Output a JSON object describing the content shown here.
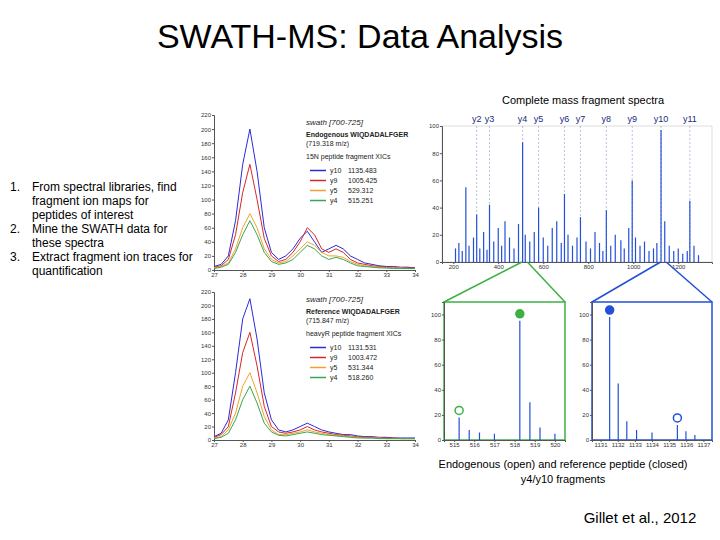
{
  "slide": {
    "title": "SWATH-MS: Data Analysis",
    "steps": [
      {
        "number": "1.",
        "text": "From spectral libraries, find fragment ion maps for peptides of interest"
      },
      {
        "number": "2.",
        "text": "Mine the SWATH data for these spectra"
      },
      {
        "number": "3.",
        "text": "Extract fragment ion traces for quantification"
      }
    ],
    "caption": [
      "Endogenous (open) and reference peptide (closed)",
      "y4/y10 fragments"
    ],
    "citation": "Gillet et al., 2012"
  },
  "chart_data": [
    {
      "type": "line",
      "title": "swath [700-725]",
      "subtitle": "Endogenous WIQDADALFGER",
      "annotations": [
        "(719.318 m/z)",
        "15N peptide fragment XICs"
      ],
      "x": [
        27,
        27.25,
        27.5,
        27.75,
        28,
        28.25,
        28.5,
        28.75,
        29,
        29.25,
        29.5,
        29.75,
        30,
        30.25,
        30.5,
        30.75,
        31,
        31.25,
        31.5,
        31.75,
        32,
        32.25,
        32.5,
        32.75,
        33,
        33.25,
        33.5,
        33.75,
        34
      ],
      "xlim": [
        27,
        34
      ],
      "xticks": [
        27,
        28,
        29,
        30,
        31,
        32,
        33,
        34
      ],
      "ylim": [
        0,
        220
      ],
      "yticks": [
        0,
        20,
        40,
        60,
        80,
        100,
        120,
        140,
        160,
        180,
        200,
        220
      ],
      "series": [
        {
          "name": "y10",
          "mz": "1135.483",
          "color": "#2b2bd9",
          "values": [
            5,
            8,
            20,
            70,
            150,
            200,
            140,
            60,
            25,
            15,
            20,
            30,
            45,
            55,
            40,
            25,
            30,
            35,
            30,
            20,
            15,
            10,
            8,
            6,
            5,
            5,
            4,
            4,
            3
          ]
        },
        {
          "name": "y9",
          "mz": "1005.425",
          "color": "#d62828",
          "values": [
            4,
            6,
            15,
            50,
            110,
            150,
            100,
            45,
            20,
            12,
            15,
            25,
            40,
            60,
            50,
            30,
            25,
            30,
            25,
            15,
            10,
            8,
            6,
            5,
            4,
            4,
            3,
            3,
            3
          ]
        },
        {
          "name": "y5",
          "mz": "529.312",
          "color": "#f2a12c",
          "values": [
            3,
            5,
            10,
            30,
            60,
            80,
            60,
            30,
            15,
            10,
            12,
            20,
            30,
            40,
            35,
            25,
            20,
            20,
            18,
            12,
            8,
            6,
            5,
            4,
            3,
            3,
            3,
            2,
            2
          ]
        },
        {
          "name": "y4",
          "mz": "515.251",
          "color": "#33a852",
          "values": [
            2,
            4,
            8,
            25,
            50,
            70,
            50,
            25,
            12,
            8,
            10,
            15,
            25,
            35,
            30,
            20,
            15,
            18,
            15,
            10,
            6,
            5,
            4,
            3,
            3,
            2,
            2,
            2,
            2
          ]
        }
      ]
    },
    {
      "type": "line",
      "title": "swath [700-725]",
      "subtitle": "Reference WIQDADALFGER",
      "annotations": [
        "(715.847 m/z)",
        "heavyR peptide fragment XICs"
      ],
      "x": [
        27,
        27.25,
        27.5,
        27.75,
        28,
        28.25,
        28.5,
        28.75,
        29,
        29.25,
        29.5,
        29.75,
        30,
        30.25,
        30.5,
        30.75,
        31,
        31.25,
        31.5,
        31.75,
        32,
        32.25,
        32.5,
        32.75,
        33,
        33.25,
        33.5,
        33.75,
        34
      ],
      "xlim": [
        27,
        34
      ],
      "xticks": [
        27,
        28,
        29,
        30,
        31,
        32,
        33,
        34
      ],
      "ylim": [
        0,
        220
      ],
      "yticks": [
        0,
        20,
        40,
        60,
        80,
        100,
        120,
        140,
        160,
        180,
        200,
        220
      ],
      "series": [
        {
          "name": "y10",
          "mz": "1131.531",
          "color": "#2b2bd9",
          "values": [
            5,
            10,
            30,
            100,
            180,
            210,
            150,
            70,
            30,
            15,
            12,
            15,
            20,
            25,
            20,
            15,
            12,
            10,
            8,
            8,
            6,
            5,
            5,
            4,
            4,
            3,
            3,
            3,
            3
          ]
        },
        {
          "name": "y9",
          "mz": "1003.472",
          "color": "#d62828",
          "values": [
            4,
            8,
            20,
            70,
            130,
            160,
            110,
            50,
            20,
            12,
            10,
            12,
            15,
            20,
            15,
            12,
            10,
            8,
            7,
            6,
            5,
            4,
            4,
            3,
            3,
            3,
            2,
            2,
            2
          ]
        },
        {
          "name": "y5",
          "mz": "531.344",
          "color": "#f2a12c",
          "values": [
            3,
            5,
            15,
            40,
            80,
            100,
            70,
            35,
            15,
            8,
            8,
            10,
            12,
            15,
            12,
            10,
            8,
            7,
            6,
            5,
            4,
            3,
            3,
            3,
            2,
            2,
            2,
            2,
            2
          ]
        },
        {
          "name": "y4",
          "mz": "518.260",
          "color": "#33a852",
          "values": [
            2,
            4,
            10,
            30,
            60,
            80,
            55,
            25,
            12,
            7,
            6,
            8,
            10,
            12,
            10,
            8,
            7,
            6,
            5,
            4,
            3,
            3,
            3,
            2,
            2,
            2,
            2,
            2,
            2
          ]
        }
      ]
    },
    {
      "type": "stem",
      "title": "Complete mass fragment spectra",
      "color": "#2350d8",
      "x": [
        210,
        225,
        240,
        256,
        270,
        290,
        304.16,
        318,
        335,
        350,
        361.18,
        380,
        400,
        415,
        430,
        450,
        470,
        490,
        508.25,
        520,
        540,
        560,
        579.28,
        600,
        620,
        640,
        660,
        680,
        694.31,
        710,
        730,
        750,
        765.35,
        790,
        810,
        830,
        850,
        865,
        880.38,
        900,
        920,
        945,
        960,
        980,
        995.42,
        1010,
        1030,
        1050,
        1070,
        1090,
        1105,
        1123.47,
        1140,
        1160,
        1180,
        1200,
        1220,
        1240,
        1251.5,
        1270,
        1290
      ],
      "values": [
        10,
        14,
        8,
        55,
        12,
        18,
        35,
        10,
        22,
        9,
        42,
        15,
        25,
        12,
        30,
        18,
        10,
        28,
        88,
        20,
        15,
        22,
        40,
        18,
        12,
        25,
        30,
        14,
        50,
        20,
        12,
        18,
        33,
        15,
        10,
        22,
        14,
        8,
        38,
        12,
        20,
        16,
        10,
        25,
        60,
        18,
        12,
        15,
        8,
        10,
        14,
        97,
        30,
        12,
        8,
        10,
        6,
        8,
        45,
        12,
        5
      ],
      "xlim": [
        150,
        1350
      ],
      "xticks": [
        200,
        400,
        600,
        800,
        1000,
        1200
      ],
      "ylim": [
        0,
        100
      ],
      "yticks": [
        0,
        20,
        40,
        60,
        80,
        100
      ],
      "annotations": [
        {
          "text": "y2",
          "x": 304.16
        },
        {
          "text": "y3",
          "x": 361.18
        },
        {
          "text": "y4",
          "x": 508.25
        },
        {
          "text": "y5",
          "x": 579.28
        },
        {
          "text": "y6",
          "x": 694.31
        },
        {
          "text": "y7",
          "x": 765.35
        },
        {
          "text": "y8",
          "x": 880.38
        },
        {
          "text": "y9",
          "x": 995.42
        },
        {
          "text": "y10",
          "x": 1123.47
        },
        {
          "text": "y11",
          "x": 1251.5
        }
      ]
    },
    {
      "type": "stem",
      "color": "#3cb043",
      "xlim": [
        514.5,
        520.5
      ],
      "xticks": [
        515,
        516,
        517,
        518,
        519,
        520
      ],
      "ylim": [
        0,
        110
      ],
      "yticks": [
        0,
        20,
        40,
        60,
        80,
        100
      ],
      "series": [
        {
          "x": [
            515.25,
            515.75,
            516.26,
            517.0,
            518.26,
            518.76,
            519.26,
            520.0
          ],
          "values": [
            18,
            8,
            6,
            5,
            95,
            30,
            10,
            5
          ],
          "color": "#2350d8"
        },
        {
          "x": [
            515.25
          ],
          "values": [
            18
          ],
          "marker": "open",
          "color": "#3cb043"
        },
        {
          "x": [
            518.26
          ],
          "values": [
            95
          ],
          "marker": "filled",
          "color": "#3cb043"
        }
      ]
    },
    {
      "type": "stem",
      "color": "#2350d8",
      "xlim": [
        1130.5,
        1137.5
      ],
      "xticks": [
        1131,
        1132,
        1133,
        1134,
        1135,
        1136,
        1137
      ],
      "ylim": [
        0,
        110
      ],
      "yticks": [
        0,
        20,
        40,
        60,
        80,
        100
      ],
      "series": [
        {
          "x": [
            1131.53,
            1132.03,
            1132.53,
            1133.1,
            1134.0,
            1135.48,
            1135.98,
            1136.5
          ],
          "values": [
            98,
            45,
            15,
            8,
            6,
            12,
            7,
            4
          ],
          "color": "#2350d8"
        },
        {
          "x": [
            1135.48
          ],
          "values": [
            12
          ],
          "marker": "open",
          "color": "#2350d8"
        },
        {
          "x": [
            1131.53
          ],
          "values": [
            98
          ],
          "marker": "filled",
          "color": "#2350d8"
        }
      ]
    }
  ]
}
